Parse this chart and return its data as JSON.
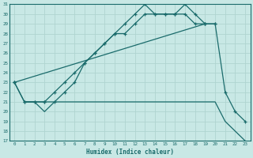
{
  "xlabel": "Humidex (Indice chaleur)",
  "bg_color": "#c8e8e5",
  "grid_color": "#afd4d0",
  "line_color": "#1a6b6b",
  "xlim": [
    -0.5,
    23.5
  ],
  "ylim": [
    17,
    31
  ],
  "xticks": [
    0,
    1,
    2,
    3,
    4,
    5,
    6,
    7,
    8,
    9,
    10,
    11,
    12,
    13,
    14,
    15,
    16,
    17,
    18,
    19,
    20,
    21,
    22,
    23
  ],
  "yticks": [
    17,
    18,
    19,
    20,
    21,
    22,
    23,
    24,
    25,
    26,
    27,
    28,
    29,
    30,
    31
  ],
  "lines": [
    {
      "x": [
        0,
        1,
        2,
        3,
        4,
        5,
        6,
        7,
        8,
        9,
        10,
        11,
        12,
        13,
        14,
        15,
        16,
        17,
        18,
        19
      ],
      "y": [
        23,
        21,
        21,
        21,
        22,
        23,
        24,
        25,
        26,
        27,
        28,
        29,
        30,
        31,
        30,
        30,
        30,
        31,
        30,
        29
      ],
      "markers": true
    },
    {
      "x": [
        0,
        1,
        2,
        3,
        4,
        5,
        6,
        7,
        8,
        9,
        10,
        11,
        12,
        13,
        14,
        15,
        16,
        17,
        18,
        19,
        20
      ],
      "y": [
        23,
        21,
        21,
        21,
        21,
        22,
        23,
        25,
        26,
        27,
        28,
        28,
        29,
        30,
        30,
        30,
        30,
        30,
        29,
        29,
        29
      ],
      "markers": true
    },
    {
      "x": [
        0,
        19,
        20,
        21,
        22,
        23
      ],
      "y": [
        23,
        29,
        29,
        22,
        20,
        19
      ],
      "markers": true
    },
    {
      "x": [
        1,
        2,
        3,
        4,
        5,
        6,
        7,
        8,
        9,
        10,
        11,
        12,
        13,
        14,
        15,
        16,
        17,
        18,
        19,
        20,
        21,
        22,
        23
      ],
      "y": [
        21,
        21,
        20,
        21,
        21,
        21,
        21,
        21,
        21,
        21,
        21,
        21,
        21,
        21,
        21,
        21,
        21,
        21,
        21,
        21,
        19,
        18,
        17
      ],
      "markers": false
    }
  ]
}
